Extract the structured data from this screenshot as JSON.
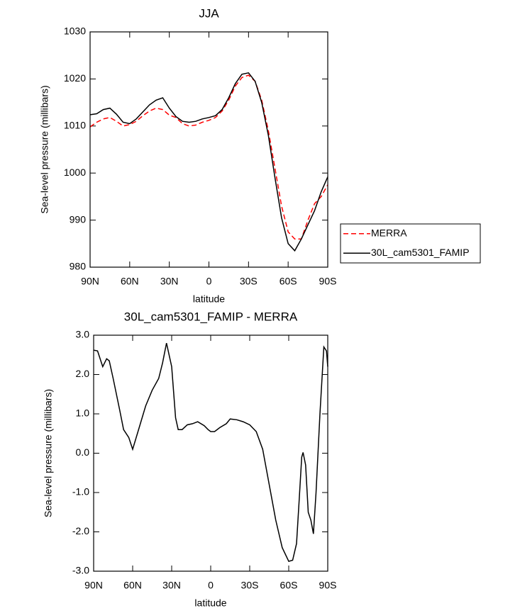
{
  "chart_data": [
    {
      "type": "line",
      "title": "JJA",
      "xlabel": "latitude",
      "ylabel": "Sea-level pressure (millibars)",
      "x": [
        90,
        85,
        80,
        75,
        70,
        65,
        60,
        55,
        50,
        45,
        40,
        35,
        30,
        25,
        20,
        15,
        10,
        5,
        0,
        -5,
        -10,
        -15,
        -20,
        -25,
        -30,
        -35,
        -40,
        -45,
        -50,
        -55,
        -60,
        -65,
        -70,
        -75,
        -80,
        -85,
        -90
      ],
      "series": [
        {
          "name": "MERRA",
          "color": "#ff0000",
          "line_style": "dashed",
          "values": [
            1009.8,
            1010.8,
            1011.5,
            1011.8,
            1011,
            1010,
            1010.3,
            1011,
            1012.2,
            1013.2,
            1013.8,
            1013.5,
            1012.3,
            1011.8,
            1010.5,
            1010,
            1010.2,
            1010.8,
            1011.2,
            1011.8,
            1013.2,
            1015.5,
            1018.5,
            1020.3,
            1020.8,
            1019.5,
            1015.5,
            1009,
            1001,
            993,
            987.5,
            986,
            986,
            990,
            993.5,
            995,
            997.5
          ]
        },
        {
          "name": "30L_cam5301_FAMIP",
          "color": "#000000",
          "line_style": "solid",
          "values": [
            1012.4,
            1012.6,
            1013.5,
            1013.8,
            1012.5,
            1010.8,
            1010.5,
            1011.5,
            1013,
            1014.5,
            1015.5,
            1016,
            1013.8,
            1012,
            1011,
            1010.8,
            1011,
            1011.5,
            1011.8,
            1012.2,
            1013.5,
            1016,
            1019,
            1021,
            1021.3,
            1019.5,
            1015,
            1008,
            999,
            990.5,
            985,
            983.5,
            986,
            989,
            992,
            996,
            999.2
          ]
        }
      ],
      "xlim": [
        90,
        -90
      ],
      "xticks": [
        {
          "value": 90,
          "label": "90N"
        },
        {
          "value": 60,
          "label": "60N"
        },
        {
          "value": 30,
          "label": "30N"
        },
        0,
        {
          "value": -30,
          "label": "30S"
        },
        {
          "value": -60,
          "label": "60S"
        },
        {
          "value": -90,
          "label": "90S"
        }
      ],
      "ylim": [
        980,
        1030
      ],
      "yticks": [
        980,
        990,
        1000,
        1010,
        1020,
        1030
      ],
      "legend": "outside-right"
    },
    {
      "type": "line",
      "title": "30L_cam5301_FAMIP - MERRA",
      "xlabel": "latitude",
      "ylabel": "Sea-level pressure (millibars)",
      "x": [
        90,
        87,
        83,
        80,
        78,
        75,
        70,
        67,
        63,
        60,
        55,
        50,
        45,
        40,
        37,
        34,
        30,
        27,
        25,
        22,
        18,
        14,
        10,
        5,
        2,
        0,
        -3,
        -7,
        -12,
        -15,
        -20,
        -25,
        -30,
        -35,
        -40,
        -45,
        -50,
        -55,
        -60,
        -63,
        -66,
        -68,
        -70,
        -71,
        -73,
        -75,
        -77,
        -79,
        -81,
        -84,
        -87,
        -89,
        -90
      ],
      "values": [
        2.62,
        2.6,
        2.2,
        2.4,
        2.35,
        1.9,
        1.1,
        0.6,
        0.4,
        0.1,
        0.65,
        1.2,
        1.6,
        1.9,
        2.3,
        2.8,
        2.2,
        0.9,
        0.6,
        0.6,
        0.72,
        0.75,
        0.8,
        0.7,
        0.6,
        0.55,
        0.55,
        0.65,
        0.75,
        0.87,
        0.85,
        0.8,
        0.72,
        0.55,
        0.1,
        -0.8,
        -1.7,
        -2.4,
        -2.75,
        -2.72,
        -2.3,
        -1.2,
        -0.1,
        0.02,
        -0.3,
        -1.5,
        -1.7,
        -2.05,
        -1.0,
        1.0,
        2.7,
        2.6,
        2.2
      ],
      "color": "#000000",
      "xlim": [
        90,
        -90
      ],
      "xticks": [
        {
          "value": 90,
          "label": "90N"
        },
        {
          "value": 60,
          "label": "60N"
        },
        {
          "value": 30,
          "label": "30N"
        },
        0,
        {
          "value": -30,
          "label": "30S"
        },
        {
          "value": -60,
          "label": "60S"
        },
        {
          "value": -90,
          "label": "90S"
        }
      ],
      "ylim": [
        -3,
        3
      ],
      "yticks": [
        {
          "value": -3,
          "label": "-3.0"
        },
        {
          "value": -2,
          "label": "-2.0"
        },
        {
          "value": -1,
          "label": "-1.0"
        },
        {
          "value": 0,
          "label": "0.0"
        },
        {
          "value": 1,
          "label": "1.0"
        },
        {
          "value": 2,
          "label": "2.0"
        },
        {
          "value": 3,
          "label": "3.0"
        }
      ]
    }
  ]
}
